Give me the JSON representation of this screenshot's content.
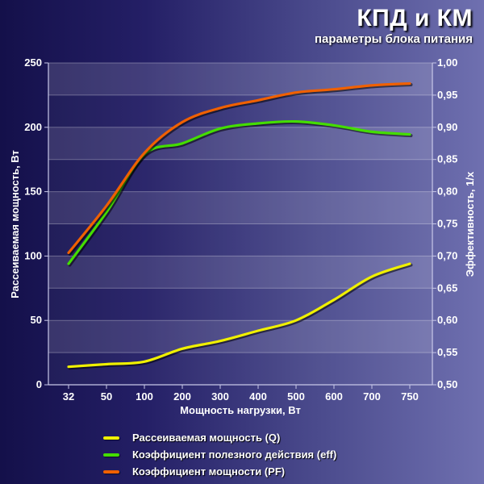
{
  "header": {
    "title": "КПД и КМ",
    "subtitle": "параметры блока питания"
  },
  "colors": {
    "q": "#f0f000",
    "eff": "#44dd00",
    "pf": "#f06000"
  },
  "legend": [
    {
      "label": "Рассеиваемая мощность (Q)",
      "color": "#f0f000"
    },
    {
      "label": "Коэффициент полезного действия (eff)",
      "color": "#44dd00"
    },
    {
      "label": "Коэффициент мощности (PF)",
      "color": "#f06000"
    }
  ],
  "chart_data": {
    "type": "line",
    "title": "КПД и КМ",
    "subtitle": "параметры блока питания",
    "xlabel": "Мощность нагрузки, Вт",
    "ylabel_left": "Рассеиваемая мощность, Вт",
    "ylabel_right": "Эффективность, 1/x",
    "categories": [
      "32",
      "50",
      "100",
      "200",
      "300",
      "400",
      "500",
      "600",
      "700",
      "750"
    ],
    "yticks_left": [
      "0",
      "50",
      "100",
      "150",
      "200",
      "250"
    ],
    "yticks_right": [
      "0,50",
      "0,55",
      "0,60",
      "0,65",
      "0,70",
      "0,75",
      "0,80",
      "0,85",
      "0,90",
      "0,95",
      "1,00"
    ],
    "ylim_left": [
      0,
      250
    ],
    "ylim_right": [
      0.5,
      1.0
    ],
    "grid": true,
    "legend_position": "bottom",
    "series": [
      {
        "name": "Рассеиваемая мощность (Q)",
        "axis": "left",
        "color": "#f0f000",
        "values": [
          14,
          16,
          18,
          28,
          34,
          42,
          50,
          66,
          84,
          94
        ]
      },
      {
        "name": "Коэффициент полезного действия (eff)",
        "axis": "right",
        "color": "#44dd00",
        "values": [
          0.688,
          0.768,
          0.858,
          0.875,
          0.898,
          0.906,
          0.909,
          0.903,
          0.893,
          0.889
        ]
      },
      {
        "name": "Коэффициент мощности (PF)",
        "axis": "right",
        "color": "#f06000",
        "values": [
          0.705,
          0.778,
          0.86,
          0.908,
          0.93,
          0.942,
          0.954,
          0.959,
          0.965,
          0.968
        ]
      }
    ]
  }
}
